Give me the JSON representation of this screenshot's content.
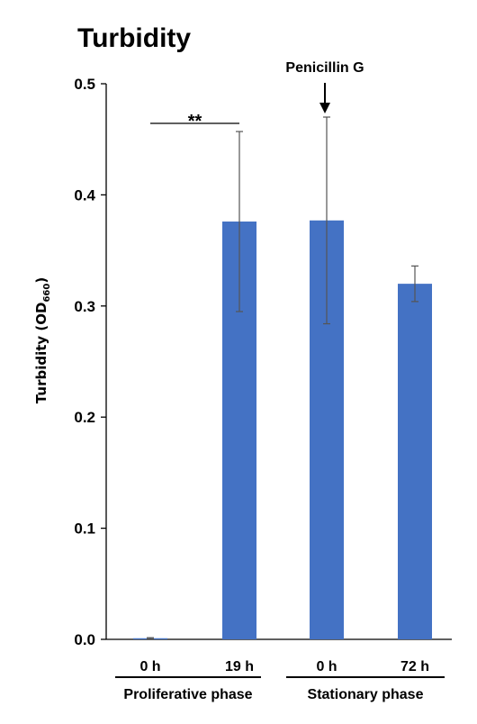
{
  "chart_data": {
    "type": "bar",
    "title": "Turbidity",
    "ylabel_main": "Turbidity (OD",
    "ylabel_sub": "660",
    "ylabel_close": ")",
    "ylim": [
      0,
      0.5
    ],
    "yticks": [
      "0.0",
      "0.1",
      "0.2",
      "0.3",
      "0.4",
      "0.5"
    ],
    "categories": [
      "0 h",
      "19 h",
      "0 h",
      "72 h"
    ],
    "values": [
      0.001,
      0.376,
      0.377,
      0.32
    ],
    "errors": [
      0.0005,
      0.081,
      0.093,
      0.016
    ],
    "groups": [
      {
        "label": "Proliferative phase",
        "categories": [
          0,
          1
        ]
      },
      {
        "label": "Stationary phase",
        "categories": [
          2,
          3
        ]
      }
    ],
    "bar_color": "#4472c4",
    "grid": false,
    "annotations": {
      "arrow_label": "Penicillin G",
      "arrow_category": 2,
      "significance": "**",
      "significance_between": [
        0,
        1
      ]
    }
  }
}
